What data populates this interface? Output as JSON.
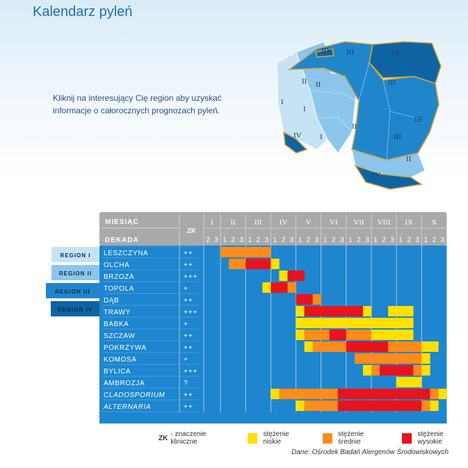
{
  "page": {
    "title": "Kalendarz pyleń",
    "intro": "Kliknij na interesujący Cię region aby uzyskać informacje o całorocznych prognozach pyleń.",
    "source": "Dane: Ośrodek Badań Alergenów Środowiskowych"
  },
  "map": {
    "labels": [
      "I",
      "I",
      "I",
      "II",
      "II",
      "II",
      "II",
      "III",
      "III",
      "III",
      "III",
      "IV",
      "IV",
      "IV",
      "IIV"
    ]
  },
  "regions": [
    {
      "label": "REGION I",
      "color": "#c6e3f5"
    },
    {
      "label": "REGION II",
      "color": "#8cc6ec"
    },
    {
      "label": "REGION III",
      "color": "#1f86cc"
    },
    {
      "label": "REGION IV",
      "color": "#0e64a3"
    }
  ],
  "legend": {
    "zk": "ZK",
    "zk_text": "- znaczenie kliniczne",
    "low": "stężenie niskie",
    "medium": "stężenie średnie",
    "high": "stężenie wysokie"
  },
  "chart_data": {
    "type": "table",
    "header": {
      "month_label": "MIESIĄC",
      "decade_label": "DEKADA",
      "zk_label": "ZK"
    },
    "months": [
      {
        "name": "I",
        "decades": [
          "2",
          "3"
        ]
      },
      {
        "name": "II",
        "decades": [
          "1",
          "2",
          "3"
        ]
      },
      {
        "name": "III",
        "decades": [
          "1",
          "2",
          "3"
        ]
      },
      {
        "name": "IV",
        "decades": [
          "1",
          "2",
          "3"
        ]
      },
      {
        "name": "V",
        "decades": [
          "1",
          "2",
          "3"
        ]
      },
      {
        "name": "VI",
        "decades": [
          "1",
          "2",
          "3"
        ]
      },
      {
        "name": "VII",
        "decades": [
          "1",
          "2",
          "3"
        ]
      },
      {
        "name": "VIII",
        "decades": [
          "1",
          "2",
          "3"
        ]
      },
      {
        "name": "IX",
        "decades": [
          "1",
          "2",
          "3"
        ]
      },
      {
        "name": "X",
        "decades": [
          "1",
          "2",
          "3"
        ]
      }
    ],
    "levels": {
      "1": "#ffe000",
      "2": "#ff8c1a",
      "3": "#e8131c"
    },
    "plants": [
      {
        "name": "LESZCZYNA",
        "italic": false,
        "zk": "++",
        "levels": [
          0,
          0,
          2,
          2,
          2,
          2,
          2,
          2,
          0,
          0,
          0,
          0,
          0,
          0,
          0,
          0,
          0,
          0,
          0,
          0,
          0,
          0,
          0,
          0,
          0,
          0,
          0,
          0,
          0
        ]
      },
      {
        "name": "OLCHA",
        "italic": false,
        "zk": "++",
        "levels": [
          0,
          0,
          0,
          2,
          2,
          3,
          3,
          3,
          1,
          0,
          0,
          0,
          0,
          0,
          0,
          0,
          0,
          0,
          0,
          0,
          0,
          0,
          0,
          0,
          0,
          0,
          0,
          0,
          0
        ]
      },
      {
        "name": "BRZOZA",
        "italic": false,
        "zk": "+++",
        "levels": [
          0,
          0,
          0,
          0,
          0,
          0,
          0,
          0,
          0,
          1,
          3,
          3,
          0,
          0,
          0,
          0,
          0,
          0,
          0,
          0,
          0,
          0,
          0,
          0,
          0,
          0,
          0,
          0,
          0
        ]
      },
      {
        "name": "TOPOLA",
        "italic": false,
        "zk": "+",
        "levels": [
          0,
          0,
          0,
          0,
          0,
          0,
          0,
          1,
          3,
          3,
          2,
          0,
          0,
          0,
          0,
          0,
          0,
          0,
          0,
          0,
          0,
          0,
          0,
          0,
          0,
          0,
          0,
          0,
          0
        ]
      },
      {
        "name": "DĄB",
        "italic": false,
        "zk": "++",
        "levels": [
          0,
          0,
          0,
          0,
          0,
          0,
          0,
          0,
          0,
          0,
          0,
          3,
          3,
          2,
          0,
          0,
          0,
          0,
          0,
          0,
          0,
          0,
          0,
          0,
          0,
          0,
          0,
          0,
          0
        ]
      },
      {
        "name": "TRAWY",
        "italic": false,
        "zk": "+++",
        "levels": [
          0,
          0,
          0,
          0,
          0,
          0,
          0,
          0,
          0,
          0,
          0,
          1,
          3,
          3,
          3,
          3,
          3,
          3,
          3,
          1,
          0,
          0,
          1,
          1,
          1,
          0,
          0,
          0,
          0
        ]
      },
      {
        "name": "BABKA",
        "italic": false,
        "zk": "+",
        "levels": [
          0,
          0,
          0,
          0,
          0,
          0,
          0,
          0,
          0,
          0,
          0,
          1,
          1,
          1,
          1,
          1,
          1,
          1,
          1,
          1,
          1,
          1,
          1,
          1,
          1,
          0,
          0,
          0,
          0
        ]
      },
      {
        "name": "SZCZAW",
        "italic": false,
        "zk": "++",
        "levels": [
          0,
          0,
          0,
          0,
          0,
          0,
          0,
          0,
          0,
          0,
          0,
          1,
          2,
          2,
          2,
          3,
          3,
          2,
          2,
          2,
          1,
          1,
          1,
          1,
          1,
          0,
          0,
          0,
          0
        ]
      },
      {
        "name": "POKRZYWA",
        "italic": false,
        "zk": "++",
        "levels": [
          0,
          0,
          0,
          0,
          0,
          0,
          0,
          0,
          0,
          0,
          0,
          0,
          1,
          2,
          2,
          2,
          2,
          3,
          3,
          3,
          3,
          3,
          2,
          2,
          2,
          2,
          1,
          1,
          0
        ]
      },
      {
        "name": "KOMOSA",
        "italic": false,
        "zk": "+",
        "levels": [
          0,
          0,
          0,
          0,
          0,
          0,
          0,
          0,
          0,
          0,
          0,
          0,
          0,
          0,
          0,
          0,
          0,
          0,
          2,
          2,
          2,
          2,
          2,
          2,
          2,
          2,
          1,
          0,
          0
        ]
      },
      {
        "name": "BYLICA",
        "italic": false,
        "zk": "+++",
        "levels": [
          0,
          0,
          0,
          0,
          0,
          0,
          0,
          0,
          0,
          0,
          0,
          0,
          0,
          0,
          0,
          0,
          0,
          0,
          0,
          1,
          2,
          3,
          3,
          3,
          3,
          2,
          1,
          0,
          0
        ]
      },
      {
        "name": "AMBROZJA",
        "italic": false,
        "zk": "?",
        "levels": [
          0,
          0,
          0,
          0,
          0,
          0,
          0,
          0,
          0,
          0,
          0,
          0,
          0,
          0,
          0,
          0,
          0,
          0,
          0,
          0,
          0,
          0,
          0,
          1,
          1,
          1,
          0,
          0,
          0
        ]
      },
      {
        "name": "CLADOSPORIUM",
        "italic": true,
        "zk": "++",
        "levels": [
          0,
          0,
          0,
          0,
          0,
          0,
          0,
          0,
          1,
          2,
          2,
          2,
          2,
          2,
          2,
          2,
          3,
          3,
          3,
          3,
          3,
          3,
          3,
          3,
          3,
          3,
          3,
          2,
          1
        ]
      },
      {
        "name": "ALTERNARIA",
        "italic": true,
        "zk": "++",
        "levels": [
          0,
          0,
          0,
          0,
          0,
          0,
          0,
          0,
          0,
          0,
          0,
          1,
          2,
          2,
          2,
          2,
          3,
          3,
          3,
          3,
          3,
          3,
          3,
          3,
          3,
          3,
          2,
          1,
          0
        ]
      }
    ]
  }
}
